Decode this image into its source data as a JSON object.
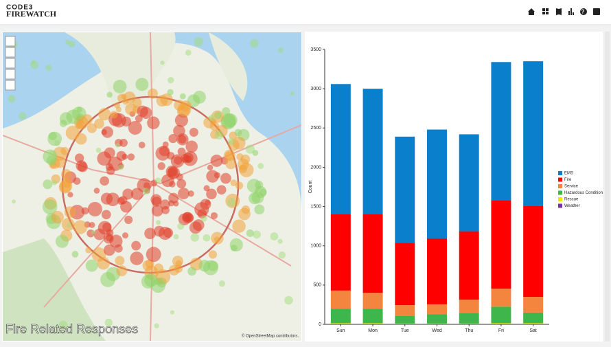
{
  "header": {
    "logo_top": "CODE3",
    "logo_bottom": "FIREWATCH"
  },
  "map": {
    "title": "Fire Related Responses",
    "attribution": "© OpenStreetMap contributors."
  },
  "chart_data": {
    "type": "bar",
    "stacked": true,
    "y_label": "Count",
    "categories": [
      "Sun",
      "Mon",
      "Tue",
      "Wed",
      "Thu",
      "Fri",
      "Sat"
    ],
    "series": [
      {
        "name": "EMS",
        "color": "#0a7fcb",
        "values": [
          1660,
          1600,
          1350,
          1385,
          1235,
          1760,
          1845
        ]
      },
      {
        "name": "Fire",
        "color": "#ff0000",
        "values": [
          970,
          1000,
          795,
          840,
          870,
          1125,
          1155
        ]
      },
      {
        "name": "Service",
        "color": "#f4853f",
        "values": [
          230,
          200,
          140,
          125,
          175,
          230,
          200
        ]
      },
      {
        "name": "Hazardous Condition",
        "color": "#3fb64c",
        "values": [
          185,
          185,
          95,
          120,
          130,
          210,
          135
        ]
      },
      {
        "name": "Rescue",
        "color": "#f0e400",
        "values": [
          10,
          10,
          7,
          7,
          7,
          10,
          10
        ]
      },
      {
        "name": "Weather",
        "color": "#7b2fa0",
        "values": [
          5,
          5,
          3,
          3,
          3,
          5,
          5
        ]
      }
    ],
    "ylim": [
      0,
      3500
    ],
    "yticks": [
      0,
      500,
      1000,
      1500,
      2000,
      2500,
      3000,
      3500
    ],
    "legend": "right"
  }
}
